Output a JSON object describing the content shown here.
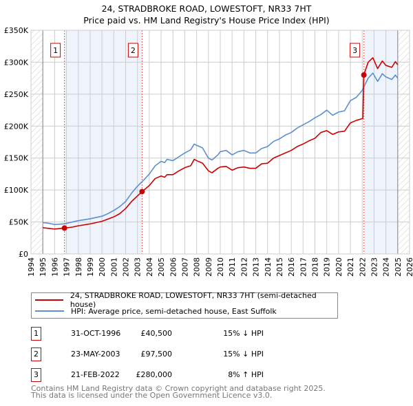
{
  "title": "24, STRADBROKE ROAD, LOWESTOFT, NR33 7HT",
  "subtitle": "Price paid vs. HM Land Registry's House Price Index (HPI)",
  "colors": {
    "property": "#cc0000",
    "hpi": "#5b8fd0",
    "shade": "#eef3fc",
    "grid": "#cccccc"
  },
  "chart_data": {
    "type": "line",
    "xlim": [
      1994,
      2026
    ],
    "ylim": [
      0,
      350000
    ],
    "x_ticks": [
      "1994",
      "1995",
      "1996",
      "1997",
      "1998",
      "1999",
      "2000",
      "2001",
      "2002",
      "2003",
      "2004",
      "2005",
      "2006",
      "2007",
      "2008",
      "2009",
      "2010",
      "2011",
      "2012",
      "2013",
      "2014",
      "2015",
      "2016",
      "2017",
      "2018",
      "2019",
      "2020",
      "2021",
      "2022",
      "2023",
      "2024",
      "2025",
      "2026"
    ],
    "y_ticks": [
      {
        "v": 0,
        "label": "£0"
      },
      {
        "v": 50000,
        "label": "£50K"
      },
      {
        "v": 100000,
        "label": "£100K"
      },
      {
        "v": 150000,
        "label": "£150K"
      },
      {
        "v": 200000,
        "label": "£200K"
      },
      {
        "v": 250000,
        "label": "£250K"
      },
      {
        "v": 300000,
        "label": "£300K"
      },
      {
        "v": 350000,
        "label": "£350K"
      }
    ],
    "data_range": [
      1995,
      2025
    ],
    "series": [
      {
        "name": "24, STRADBROKE ROAD, LOWESTOFT, NR33 7HT (semi-detached house)",
        "color": "#cc0000",
        "x": [
          1995,
          1996,
          1996.83,
          1997.5,
          1998,
          1999,
          2000,
          2001,
          2001.5,
          2002,
          2002.5,
          2003.39,
          2004,
          2004.5,
          2005,
          2005.3,
          2005.5,
          2006,
          2006.5,
          2007,
          2007.5,
          2007.8,
          2008,
          2008.5,
          2009,
          2009.3,
          2009.8,
          2010,
          2010.5,
          2011,
          2011.5,
          2012,
          2012.5,
          2013,
          2013.5,
          2014,
          2014.5,
          2015,
          2015.5,
          2016,
          2016.5,
          2017,
          2017.5,
          2018,
          2018.5,
          2019,
          2019.5,
          2020,
          2020.5,
          2021,
          2021.5,
          2022.05,
          2022.13,
          2022.5,
          2022.9,
          2023.3,
          2023.7,
          2024,
          2024.5,
          2024.8,
          2025
        ],
        "y": [
          41000,
          39000,
          40500,
          42000,
          44000,
          47000,
          51000,
          58000,
          63000,
          71000,
          82000,
          97500,
          107000,
          118000,
          122000,
          120000,
          124000,
          124000,
          130000,
          135000,
          138000,
          148000,
          146000,
          142000,
          130000,
          127000,
          134000,
          136000,
          137000,
          131000,
          135000,
          136000,
          134000,
          134000,
          141000,
          142000,
          150000,
          154000,
          158000,
          162000,
          168000,
          172000,
          177000,
          181000,
          190000,
          193000,
          187000,
          191000,
          192000,
          205000,
          209000,
          212000,
          280000,
          300000,
          307000,
          290000,
          302000,
          295000,
          292000,
          301000,
          296000
        ]
      },
      {
        "name": "HPI: Average price, semi-detached house, East Suffolk",
        "color": "#5b8fd0",
        "x": [
          1995,
          1995.5,
          1996,
          1996.8,
          1997.5,
          1998,
          1999,
          2000,
          2000.5,
          2001,
          2001.5,
          2002,
          2002.5,
          2003,
          2003.5,
          2004,
          2004.5,
          2005,
          2005.3,
          2005.5,
          2006,
          2006.5,
          2007,
          2007.5,
          2007.8,
          2008,
          2008.5,
          2009,
          2009.3,
          2009.8,
          2010,
          2010.5,
          2011,
          2011.5,
          2012,
          2012.5,
          2013,
          2013.5,
          2014,
          2014.5,
          2015,
          2015.5,
          2016,
          2016.5,
          2017,
          2017.5,
          2018,
          2018.5,
          2019,
          2019.5,
          2020,
          2020.5,
          2021,
          2021.5,
          2022,
          2022.5,
          2022.9,
          2023.3,
          2023.7,
          2024,
          2024.5,
          2024.8,
          2025
        ],
        "y": [
          49000,
          48000,
          46000,
          47000,
          50000,
          52000,
          55000,
          59000,
          63000,
          68000,
          74000,
          82000,
          95000,
          106000,
          115000,
          125000,
          138000,
          145000,
          143000,
          148000,
          146000,
          152000,
          158000,
          163000,
          172000,
          170000,
          166000,
          150000,
          147000,
          155000,
          160000,
          162000,
          155000,
          160000,
          162000,
          158000,
          158000,
          165000,
          168000,
          176000,
          180000,
          186000,
          190000,
          197000,
          202000,
          207000,
          213000,
          218000,
          225000,
          217000,
          222000,
          224000,
          240000,
          245000,
          256000,
          275000,
          283000,
          270000,
          282000,
          277000,
          273000,
          280000,
          275000
        ]
      }
    ],
    "sales": [
      {
        "id": "1",
        "x": 1996.83,
        "price": 40500,
        "date": "31-OCT-1996",
        "price_label": "£40,500",
        "hpi_delta": "15% ↓ HPI"
      },
      {
        "id": "2",
        "x": 2003.39,
        "price": 97500,
        "date": "23-MAY-2003",
        "price_label": "£97,500",
        "hpi_delta": "15% ↓ HPI"
      },
      {
        "id": "3",
        "x": 2022.14,
        "price": 280000,
        "date": "21-FEB-2022",
        "price_label": "£280,000",
        "hpi_delta": "8% ↑ HPI"
      }
    ]
  },
  "legend": {
    "property": "24, STRADBROKE ROAD, LOWESTOFT, NR33 7HT (semi-detached house)",
    "hpi": "HPI: Average price, semi-detached house, East Suffolk"
  },
  "footer": {
    "line1": "Contains HM Land Registry data © Crown copyright and database right 2025.",
    "line2": "This data is licensed under the Open Government Licence v3.0."
  }
}
